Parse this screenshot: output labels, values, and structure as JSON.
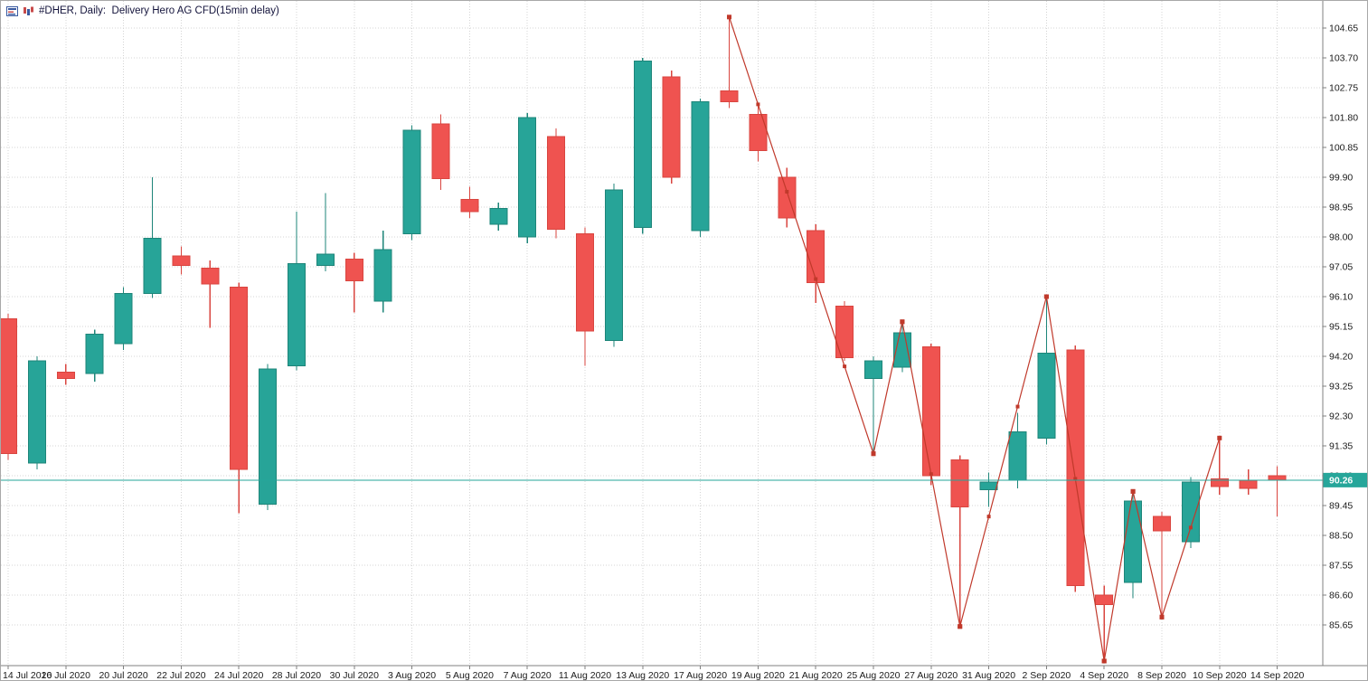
{
  "window": {
    "title": "#DHER, Daily:  Delivery Hero AG CFD(15min delay)"
  },
  "chart_data": {
    "type": "candlestick",
    "title": "#DHER, Daily:  Delivery Hero AG CFD(15min delay)",
    "symbol": "#DHER",
    "timeframe": "Daily",
    "instrument": "Delivery Hero AG CFD(15min delay)",
    "grid": true,
    "ylim": [
      84.3,
      105.2
    ],
    "price_axis": {
      "labels": [
        "104.65",
        "103.70",
        "102.75",
        "101.80",
        "100.85",
        "99.90",
        "98.95",
        "98.00",
        "97.05",
        "96.10",
        "95.15",
        "94.20",
        "93.25",
        "92.30",
        "91.35",
        "90.40",
        "89.45",
        "88.50",
        "87.55",
        "86.60",
        "85.65"
      ],
      "step": 0.95,
      "current_price": "90.26",
      "current_price_value": 90.26
    },
    "time_axis_labels": [
      "14 Jul 2020",
      "16 Jul 2020",
      "20 Jul 2020",
      "22 Jul 2020",
      "24 Jul 2020",
      "28 Jul 2020",
      "30 Jul 2020",
      "3 Aug 2020",
      "5 Aug 2020",
      "7 Aug 2020",
      "11 Aug 2020",
      "13 Aug 2020",
      "17 Aug 2020",
      "19 Aug 2020",
      "21 Aug 2020",
      "25 Aug 2020",
      "27 Aug 2020",
      "31 Aug 2020",
      "2 Sep 2020",
      "4 Sep 2020",
      "8 Sep 2020",
      "10 Sep 2020",
      "14 Sep 2020"
    ],
    "candles": [
      {
        "date": "14 Jul 2020",
        "o": 95.4,
        "h": 95.55,
        "l": 90.9,
        "c": 91.1
      },
      {
        "date": "15 Jul 2020",
        "o": 90.8,
        "h": 94.2,
        "l": 90.6,
        "c": 94.05
      },
      {
        "date": "16 Jul 2020",
        "o": 93.7,
        "h": 93.95,
        "l": 93.3,
        "c": 93.5
      },
      {
        "date": "17 Jul 2020",
        "o": 93.65,
        "h": 95.05,
        "l": 93.4,
        "c": 94.9
      },
      {
        "date": "20 Jul 2020",
        "o": 94.6,
        "h": 96.4,
        "l": 94.4,
        "c": 96.2
      },
      {
        "date": "21 Jul 2020",
        "o": 96.2,
        "h": 99.9,
        "l": 96.05,
        "c": 97.95
      },
      {
        "date": "22 Jul 2020",
        "o": 97.4,
        "h": 97.7,
        "l": 96.8,
        "c": 97.1
      },
      {
        "date": "23 Jul 2020",
        "o": 97.0,
        "h": 97.25,
        "l": 95.1,
        "c": 96.5
      },
      {
        "date": "24 Jul 2020",
        "o": 96.4,
        "h": 96.55,
        "l": 89.2,
        "c": 90.6
      },
      {
        "date": "27 Jul 2020",
        "o": 89.5,
        "h": 93.95,
        "l": 89.3,
        "c": 93.8
      },
      {
        "date": "28 Jul 2020",
        "o": 93.9,
        "h": 98.8,
        "l": 93.75,
        "c": 97.15
      },
      {
        "date": "29 Jul 2020",
        "o": 97.1,
        "h": 99.4,
        "l": 96.9,
        "c": 97.45
      },
      {
        "date": "30 Jul 2020",
        "o": 97.3,
        "h": 97.5,
        "l": 95.6,
        "c": 96.6
      },
      {
        "date": "31 Jul 2020",
        "o": 95.95,
        "h": 98.2,
        "l": 95.6,
        "c": 97.6
      },
      {
        "date": "3 Aug 2020",
        "o": 98.1,
        "h": 101.55,
        "l": 97.9,
        "c": 101.4
      },
      {
        "date": "4 Aug 2020",
        "o": 101.6,
        "h": 101.9,
        "l": 99.5,
        "c": 99.85
      },
      {
        "date": "5 Aug 2020",
        "o": 99.2,
        "h": 99.6,
        "l": 98.6,
        "c": 98.8
      },
      {
        "date": "6 Aug 2020",
        "o": 98.4,
        "h": 99.1,
        "l": 98.2,
        "c": 98.9
      },
      {
        "date": "7 Aug 2020",
        "o": 98.0,
        "h": 101.95,
        "l": 97.8,
        "c": 101.8
      },
      {
        "date": "10 Aug 2020",
        "o": 101.2,
        "h": 101.45,
        "l": 97.95,
        "c": 98.25
      },
      {
        "date": "11 Aug 2020",
        "o": 98.1,
        "h": 98.3,
        "l": 93.9,
        "c": 95.0
      },
      {
        "date": "12 Aug 2020",
        "o": 94.7,
        "h": 99.7,
        "l": 94.5,
        "c": 99.5
      },
      {
        "date": "13 Aug 2020",
        "o": 98.3,
        "h": 103.7,
        "l": 98.1,
        "c": 103.6
      },
      {
        "date": "14 Aug 2020",
        "o": 103.1,
        "h": 103.3,
        "l": 99.7,
        "c": 99.9
      },
      {
        "date": "17 Aug 2020",
        "o": 98.2,
        "h": 102.4,
        "l": 98.0,
        "c": 102.3
      },
      {
        "date": "18 Aug 2020",
        "o": 102.65,
        "h": 105.0,
        "l": 102.1,
        "c": 102.3
      },
      {
        "date": "19 Aug 2020",
        "o": 101.9,
        "h": 102.2,
        "l": 100.4,
        "c": 100.75
      },
      {
        "date": "20 Aug 2020",
        "o": 99.9,
        "h": 100.2,
        "l": 98.3,
        "c": 98.6
      },
      {
        "date": "21 Aug 2020",
        "o": 98.2,
        "h": 98.4,
        "l": 95.9,
        "c": 96.55
      },
      {
        "date": "24 Aug 2020",
        "o": 95.8,
        "h": 95.95,
        "l": 94.05,
        "c": 94.15
      },
      {
        "date": "25 Aug 2020",
        "o": 93.5,
        "h": 94.2,
        "l": 91.1,
        "c": 94.05
      },
      {
        "date": "26 Aug 2020",
        "o": 93.85,
        "h": 95.3,
        "l": 93.7,
        "c": 94.95
      },
      {
        "date": "27 Aug 2020",
        "o": 94.5,
        "h": 94.6,
        "l": 90.1,
        "c": 90.4
      },
      {
        "date": "28 Aug 2020",
        "o": 90.9,
        "h": 91.05,
        "l": 85.6,
        "c": 89.4
      },
      {
        "date": "31 Aug 2020",
        "o": 89.95,
        "h": 90.5,
        "l": 89.4,
        "c": 90.2
      },
      {
        "date": "1 Sep 2020",
        "o": 90.25,
        "h": 92.4,
        "l": 90.0,
        "c": 91.8
      },
      {
        "date": "2 Sep 2020",
        "o": 91.6,
        "h": 96.1,
        "l": 91.4,
        "c": 94.3
      },
      {
        "date": "3 Sep 2020",
        "o": 94.4,
        "h": 94.55,
        "l": 86.7,
        "c": 86.9
      },
      {
        "date": "4 Sep 2020",
        "o": 86.6,
        "h": 86.9,
        "l": 84.5,
        "c": 86.3
      },
      {
        "date": "7 Sep 2020",
        "o": 87.0,
        "h": 89.9,
        "l": 86.5,
        "c": 89.6
      },
      {
        "date": "8 Sep 2020",
        "o": 89.1,
        "h": 89.25,
        "l": 85.9,
        "c": 88.65
      },
      {
        "date": "9 Sep 2020",
        "o": 88.3,
        "h": 90.35,
        "l": 88.1,
        "c": 90.2
      },
      {
        "date": "10 Sep 2020",
        "o": 90.3,
        "h": 91.6,
        "l": 89.8,
        "c": 90.05
      },
      {
        "date": "11 Sep 2020",
        "o": 90.25,
        "h": 90.6,
        "l": 89.8,
        "c": 90.0
      },
      {
        "date": "14 Sep 2020",
        "o": 90.4,
        "h": 90.7,
        "l": 89.1,
        "c": 90.26
      }
    ],
    "zigzag_points": [
      {
        "date": "18 Aug 2020",
        "price": 105.0
      },
      {
        "date": "25 Aug 2020",
        "price": 91.1
      },
      {
        "date": "26 Aug 2020",
        "price": 95.3
      },
      {
        "date": "28 Aug 2020",
        "price": 85.6
      },
      {
        "date": "2 Sep 2020",
        "price": 96.1
      },
      {
        "date": "4 Sep 2020",
        "price": 84.5
      },
      {
        "date": "7 Sep 2020",
        "price": 89.9
      },
      {
        "date": "8 Sep 2020",
        "price": 85.9
      },
      {
        "date": "10 Sep 2020",
        "price": 91.6
      }
    ],
    "colors": {
      "bull": "#27a498",
      "bull_border": "#1d8579",
      "bear": "#ef5350",
      "bear_border": "#d9453f",
      "zigzag": "#c0392b",
      "grid": "#d4d4d4",
      "axis_line": "#808080",
      "price_line": "#26a69a",
      "badge_bg": "#26a69a",
      "title_text": "#14143c"
    }
  }
}
